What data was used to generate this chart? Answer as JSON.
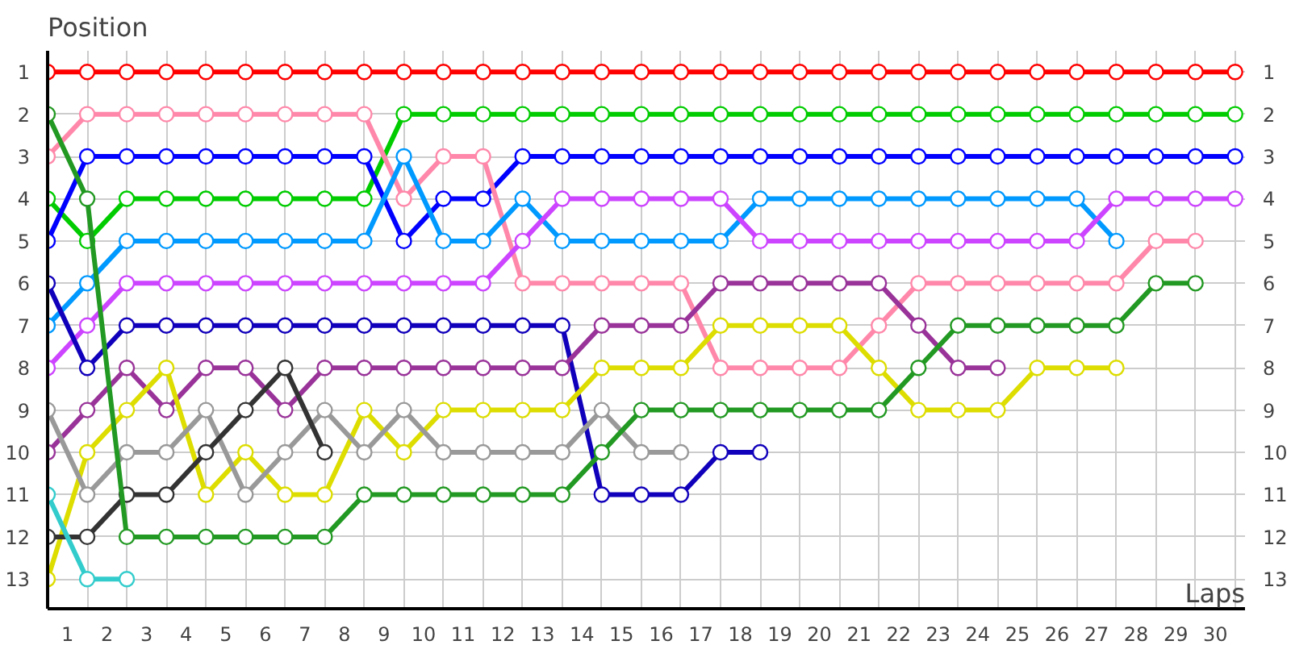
{
  "chart_data": {
    "type": "line",
    "xlabel": "Laps",
    "ylabel": "Position",
    "x": [
      0,
      1,
      2,
      3,
      4,
      5,
      6,
      7,
      8,
      9,
      10,
      11,
      12,
      13,
      14,
      15,
      16,
      17,
      18,
      19,
      20,
      21,
      22,
      23,
      24,
      25,
      26,
      27,
      28,
      29,
      30
    ],
    "xlim": [
      0,
      30.25
    ],
    "xticks": [
      {
        "value": 0,
        "label": null
      },
      {
        "value": 0.5,
        "label": "1"
      },
      {
        "value": 1,
        "label": null
      },
      {
        "value": 1.5,
        "label": "2"
      },
      {
        "value": 2,
        "label": null
      },
      {
        "value": 2.5,
        "label": "3"
      },
      {
        "value": 3,
        "label": null
      },
      {
        "value": 3.5,
        "label": "4"
      },
      {
        "value": 4,
        "label": null
      },
      {
        "value": 4.5,
        "label": "5"
      },
      {
        "value": 5,
        "label": null
      },
      {
        "value": 5.5,
        "label": "6"
      },
      {
        "value": 6,
        "label": null
      },
      {
        "value": 6.5,
        "label": "7"
      },
      {
        "value": 7,
        "label": null
      },
      {
        "value": 7.5,
        "label": "8"
      },
      {
        "value": 8,
        "label": null
      },
      {
        "value": 8.5,
        "label": "9"
      },
      {
        "value": 9,
        "label": null
      },
      {
        "value": 9.5,
        "label": "10"
      },
      {
        "value": 10,
        "label": null
      },
      {
        "value": 10.5,
        "label": "11"
      },
      {
        "value": 11,
        "label": null
      },
      {
        "value": 11.5,
        "label": "12"
      },
      {
        "value": 12,
        "label": null
      },
      {
        "value": 12.5,
        "label": "13"
      },
      {
        "value": 13,
        "label": null
      },
      {
        "value": 13.5,
        "label": "14"
      },
      {
        "value": 14,
        "label": null
      },
      {
        "value": 14.5,
        "label": "15"
      },
      {
        "value": 15,
        "label": null
      },
      {
        "value": 15.5,
        "label": "16"
      },
      {
        "value": 16,
        "label": null
      },
      {
        "value": 16.5,
        "label": "17"
      },
      {
        "value": 17,
        "label": null
      },
      {
        "value": 17.5,
        "label": "18"
      },
      {
        "value": 18,
        "label": null
      },
      {
        "value": 18.5,
        "label": "19"
      },
      {
        "value": 19,
        "label": null
      },
      {
        "value": 19.5,
        "label": "20"
      },
      {
        "value": 20,
        "label": null
      },
      {
        "value": 20.5,
        "label": "21"
      },
      {
        "value": 21,
        "label": null
      },
      {
        "value": 21.5,
        "label": "22"
      },
      {
        "value": 22,
        "label": null
      },
      {
        "value": 22.5,
        "label": "23"
      },
      {
        "value": 23,
        "label": null
      },
      {
        "value": 23.5,
        "label": "24"
      },
      {
        "value": 24,
        "label": null
      },
      {
        "value": 24.5,
        "label": "25"
      },
      {
        "value": 25,
        "label": null
      },
      {
        "value": 25.5,
        "label": "26"
      },
      {
        "value": 26,
        "label": null
      },
      {
        "value": 26.5,
        "label": "27"
      },
      {
        "value": 27,
        "label": null
      },
      {
        "value": 27.5,
        "label": "28"
      },
      {
        "value": 28,
        "label": null
      },
      {
        "value": 28.5,
        "label": "29"
      },
      {
        "value": 29,
        "label": null
      },
      {
        "value": 29.5,
        "label": "30"
      },
      {
        "value": 30,
        "label": null
      }
    ],
    "ylim": [
      13.7,
      0.5
    ],
    "yticks": [
      1,
      2,
      3,
      4,
      5,
      6,
      7,
      8,
      9,
      10,
      11,
      12,
      13
    ],
    "y2lim": [
      13.7,
      0.5
    ],
    "y2ticks": [
      1,
      2,
      3,
      4,
      5,
      6,
      7,
      8,
      9,
      10,
      11,
      12,
      13
    ],
    "grid": true,
    "marker": "circle",
    "line_style": "solid",
    "series": [
      {
        "color": "#ff0000",
        "values": [
          1,
          1,
          1,
          1,
          1,
          1,
          1,
          1,
          1,
          1,
          1,
          1,
          1,
          1,
          1,
          1,
          1,
          1,
          1,
          1,
          1,
          1,
          1,
          1,
          1,
          1,
          1,
          1,
          1,
          1,
          1
        ]
      },
      {
        "color": "#00cc00",
        "values": [
          4,
          5,
          4,
          4,
          4,
          4,
          4,
          4,
          4,
          2,
          2,
          2,
          2,
          2,
          2,
          2,
          2,
          2,
          2,
          2,
          2,
          2,
          2,
          2,
          2,
          2,
          2,
          2,
          2,
          2,
          2
        ]
      },
      {
        "color": "#0000ff",
        "values": [
          5,
          3,
          3,
          3,
          3,
          3,
          3,
          3,
          3,
          5,
          4,
          4,
          3,
          3,
          3,
          3,
          3,
          3,
          3,
          3,
          3,
          3,
          3,
          3,
          3,
          3,
          3,
          3,
          3,
          3,
          3
        ]
      },
      {
        "color": "#ff88aa",
        "values": [
          3,
          2,
          2,
          2,
          2,
          2,
          2,
          2,
          2,
          4,
          3,
          3,
          6,
          6,
          6,
          6,
          6,
          8,
          8,
          8,
          8,
          7,
          6,
          6,
          6,
          6,
          6,
          6,
          5,
          5,
          null
        ]
      },
      {
        "color": "#0099ff",
        "values": [
          7,
          6,
          5,
          5,
          5,
          5,
          5,
          5,
          5,
          3,
          5,
          5,
          4,
          5,
          5,
          5,
          5,
          5,
          4,
          4,
          4,
          4,
          4,
          4,
          4,
          4,
          4,
          5,
          null,
          null,
          null
        ]
      },
      {
        "color": "#cc44ff",
        "values": [
          8,
          7,
          6,
          6,
          6,
          6,
          6,
          6,
          6,
          6,
          6,
          6,
          5,
          4,
          4,
          4,
          4,
          4,
          5,
          5,
          5,
          5,
          5,
          5,
          5,
          5,
          5,
          4,
          4,
          4,
          4
        ]
      },
      {
        "color": "#1100bb",
        "values": [
          6,
          8,
          7,
          7,
          7,
          7,
          7,
          7,
          7,
          7,
          7,
          7,
          7,
          7,
          11,
          11,
          11,
          10,
          10,
          null,
          null,
          null,
          null,
          null,
          null,
          null,
          null,
          null,
          null,
          null,
          null
        ]
      },
      {
        "color": "#993399",
        "values": [
          10,
          9,
          8,
          9,
          8,
          8,
          9,
          8,
          8,
          8,
          8,
          8,
          8,
          8,
          7,
          7,
          7,
          6,
          6,
          6,
          6,
          6,
          7,
          8,
          8,
          null,
          null,
          null,
          null,
          null,
          null
        ]
      },
      {
        "color": "#dddd00",
        "values": [
          13,
          10,
          9,
          8,
          11,
          10,
          11,
          11,
          9,
          10,
          9,
          9,
          9,
          9,
          8,
          8,
          8,
          7,
          7,
          7,
          7,
          8,
          9,
          9,
          9,
          8,
          8,
          8,
          null,
          null,
          null
        ]
      },
      {
        "color": "#999999",
        "values": [
          9,
          11,
          10,
          10,
          9,
          11,
          10,
          9,
          10,
          9,
          10,
          10,
          10,
          10,
          9,
          10,
          10,
          null,
          null,
          null,
          null,
          null,
          null,
          null,
          null,
          null,
          null,
          null,
          null,
          null,
          null
        ]
      },
      {
        "color": "#333333",
        "values": [
          12,
          12,
          11,
          11,
          10,
          9,
          8,
          10,
          null,
          null,
          null,
          null,
          null,
          null,
          null,
          null,
          null,
          null,
          null,
          null,
          null,
          null,
          null,
          null,
          null,
          null,
          null,
          null,
          null,
          null,
          null
        ]
      },
      {
        "color": "#229922",
        "values": [
          2,
          4,
          12,
          12,
          12,
          12,
          12,
          12,
          11,
          11,
          11,
          11,
          11,
          11,
          10,
          9,
          9,
          9,
          9,
          9,
          9,
          9,
          8,
          7,
          7,
          7,
          7,
          7,
          6,
          6,
          null
        ]
      },
      {
        "color": "#33cccc",
        "values": [
          11,
          13,
          13,
          null,
          null,
          null,
          null,
          null,
          null,
          null,
          null,
          null,
          null,
          null,
          null,
          null,
          null,
          null,
          null,
          null,
          null,
          null,
          null,
          null,
          null,
          null,
          null,
          null,
          null,
          null,
          null
        ]
      }
    ]
  }
}
